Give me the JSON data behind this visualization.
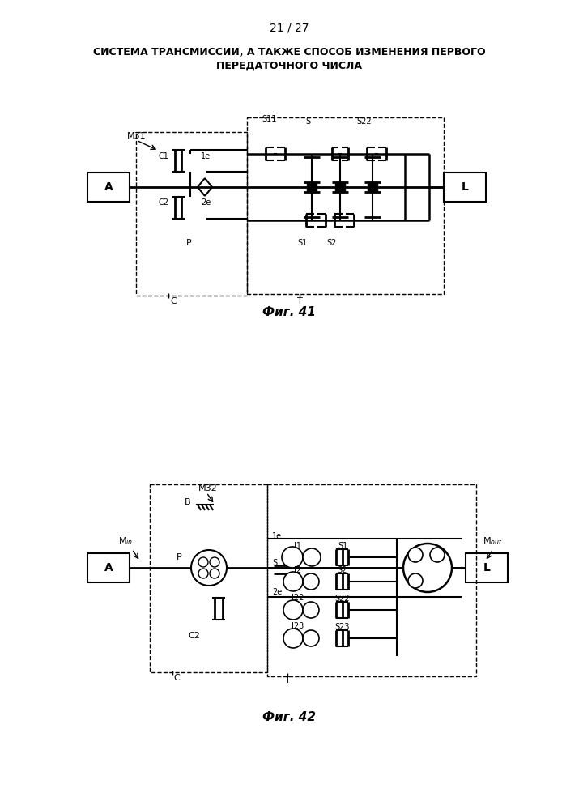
{
  "page_number": "21 / 27",
  "title_line1": "СИСТЕМА ТРАНСМИССИИ, А ТАКЖЕ СПОСОБ ИЗМЕНЕНИЯ ПЕРВОГО",
  "title_line2": "ПЕРЕДАТОЧНОГО ЧИСЛА",
  "fig41_caption": "Фиг. 41",
  "fig42_caption": "Фиг. 42",
  "bg_color": "#ffffff",
  "line_color": "#000000"
}
